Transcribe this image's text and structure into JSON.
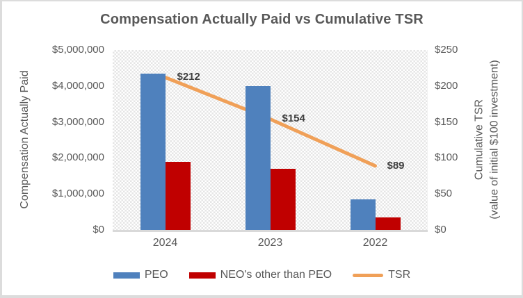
{
  "title": "Compensation Actually Paid vs Cumulative TSR",
  "left_axis": {
    "title": "Compensation Actually Paid",
    "ticks": [
      "$5,000,000",
      "$4,000,000",
      "$3,000,000",
      "$2,000,000",
      "$1,000,000",
      "$0"
    ]
  },
  "right_axis": {
    "title_line1": "Cumulative TSR",
    "title_line2": "(value of initial $100 investment)",
    "ticks": [
      "$250",
      "$200",
      "$150",
      "$100",
      "$50",
      "$0"
    ]
  },
  "colors": {
    "peo_bar": "#4F81BD",
    "neo_bar": "#C00000",
    "tsr_line": "#F0A058",
    "title_text": "#595959",
    "axis_text": "#595959",
    "data_label_text": "#3F3F3F",
    "plot_pattern": "#E5E5E5",
    "border": "#DCDCDC"
  },
  "chart_data": {
    "type": "bar",
    "subtype": "combo-bar-line-two-axes",
    "title": "Compensation Actually Paid vs Cumulative TSR",
    "categories": [
      "2024",
      "2023",
      "2022"
    ],
    "series": [
      {
        "name": "PEO",
        "type": "bar",
        "axis": "left",
        "color": "#4F81BD",
        "values": [
          4350000,
          4000000,
          850000
        ]
      },
      {
        "name": "NEO's other than PEO",
        "type": "bar",
        "axis": "left",
        "color": "#C00000",
        "values": [
          1900000,
          1700000,
          350000
        ]
      },
      {
        "name": "TSR",
        "type": "line",
        "axis": "right",
        "color": "#F0A058",
        "values": [
          212,
          154,
          89
        ],
        "data_labels": [
          "$212",
          "$154",
          "$89"
        ]
      }
    ],
    "left_axis": {
      "label": "Compensation Actually Paid",
      "range": [
        0,
        5000000
      ],
      "tick_step": 1000000
    },
    "right_axis": {
      "label": "Cumulative TSR (value of initial $100 investment)",
      "range": [
        0,
        250
      ],
      "tick_step": 50
    },
    "legend_position": "bottom",
    "grid": false,
    "plot_background": "light-gray checkered pattern"
  }
}
